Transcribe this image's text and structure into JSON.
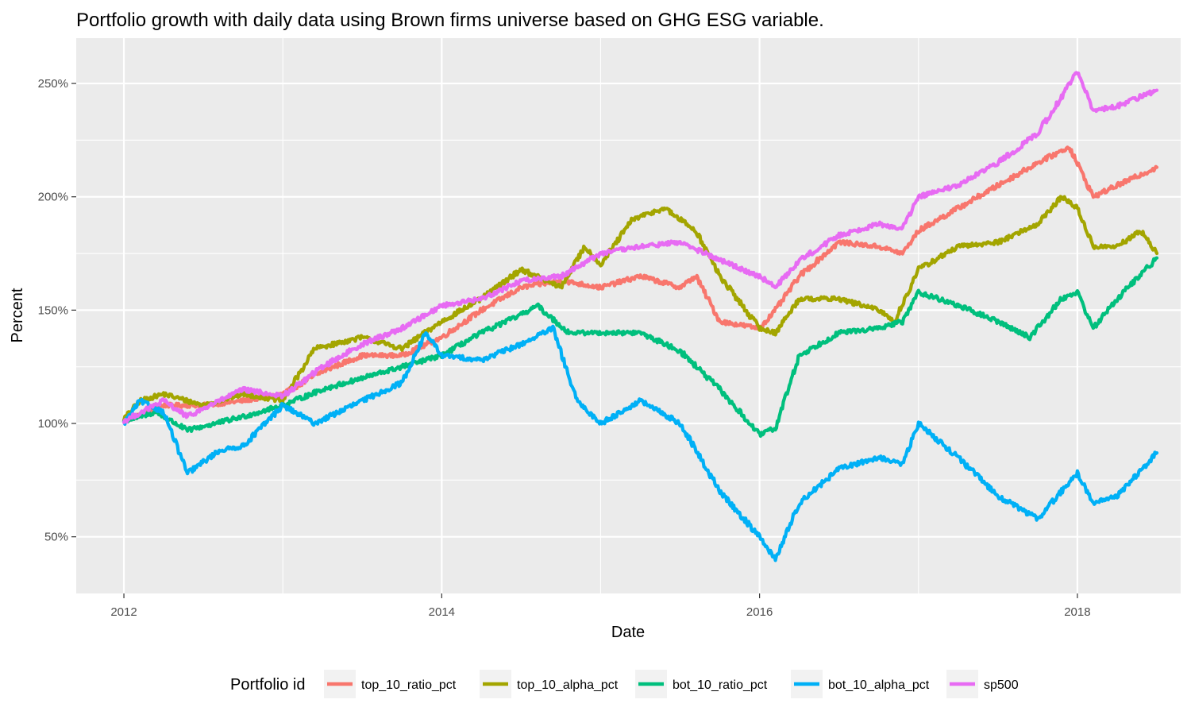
{
  "chart_data": {
    "type": "line",
    "title": "Portfolio growth with daily data using Brown firms universe based on GHG ESG variable.",
    "xlabel": "Date",
    "ylabel": "Percent",
    "x_ticks": [
      "2012",
      "2014",
      "2016",
      "2018"
    ],
    "y_ticks": [
      "50%",
      "100%",
      "150%",
      "200%",
      "250%"
    ],
    "xlim": [
      2011.7,
      2018.65
    ],
    "ylim": [
      25,
      270
    ],
    "grid": true,
    "legend": {
      "title": "Portfolio id",
      "position": "bottom"
    },
    "series": [
      {
        "name": "top_10_ratio_pct",
        "color": "#F8766D",
        "x": [
          2012.0,
          2012.25,
          2012.5,
          2012.75,
          2013.0,
          2013.25,
          2013.5,
          2013.75,
          2014.0,
          2014.25,
          2014.5,
          2014.75,
          2015.0,
          2015.25,
          2015.5,
          2015.6,
          2015.75,
          2016.0,
          2016.1,
          2016.25,
          2016.5,
          2016.75,
          2016.9,
          2017.0,
          2017.25,
          2017.5,
          2017.75,
          2017.95,
          2018.1,
          2018.25,
          2018.5
        ],
        "y": [
          101,
          108,
          108,
          110,
          113,
          123,
          130,
          130,
          138,
          150,
          160,
          163,
          160,
          165,
          160,
          165,
          145,
          142,
          150,
          165,
          180,
          178,
          175,
          185,
          195,
          205,
          215,
          222,
          200,
          205,
          213
        ]
      },
      {
        "name": "top_10_alpha_pct",
        "color": "#A3A500",
        "x": [
          2012.0,
          2012.1,
          2012.25,
          2012.5,
          2012.75,
          2013.0,
          2013.2,
          2013.5,
          2013.75,
          2014.0,
          2014.25,
          2014.5,
          2014.75,
          2014.9,
          2015.0,
          2015.2,
          2015.4,
          2015.6,
          2015.75,
          2016.0,
          2016.1,
          2016.25,
          2016.5,
          2016.75,
          2016.85,
          2017.0,
          2017.25,
          2017.5,
          2017.75,
          2017.9,
          2018.0,
          2018.1,
          2018.25,
          2018.4,
          2018.5
        ],
        "y": [
          102,
          110,
          113,
          108,
          113,
          110,
          133,
          138,
          133,
          145,
          155,
          168,
          160,
          178,
          170,
          190,
          195,
          185,
          165,
          142,
          140,
          155,
          155,
          150,
          145,
          168,
          178,
          180,
          188,
          200,
          195,
          178,
          178,
          185,
          175
        ]
      },
      {
        "name": "bot_10_ratio_pct",
        "color": "#00BF7D",
        "x": [
          2012.0,
          2012.2,
          2012.4,
          2012.75,
          2013.0,
          2013.25,
          2013.5,
          2013.75,
          2014.0,
          2014.25,
          2014.5,
          2014.6,
          2014.8,
          2015.0,
          2015.25,
          2015.5,
          2015.75,
          2016.0,
          2016.1,
          2016.25,
          2016.5,
          2016.75,
          2016.9,
          2017.0,
          2017.25,
          2017.5,
          2017.7,
          2017.9,
          2018.0,
          2018.1,
          2018.25,
          2018.5
        ],
        "y": [
          101,
          105,
          97,
          103,
          108,
          115,
          120,
          125,
          130,
          140,
          148,
          152,
          140,
          140,
          140,
          132,
          115,
          95,
          98,
          130,
          140,
          142,
          145,
          158,
          152,
          145,
          138,
          155,
          158,
          142,
          155,
          173
        ]
      },
      {
        "name": "bot_10_alpha_pct",
        "color": "#00B0F6",
        "x": [
          2012.0,
          2012.1,
          2012.25,
          2012.4,
          2012.6,
          2012.75,
          2013.0,
          2013.2,
          2013.5,
          2013.75,
          2013.9,
          2014.0,
          2014.25,
          2014.5,
          2014.7,
          2014.85,
          2015.0,
          2015.25,
          2015.5,
          2015.75,
          2016.0,
          2016.1,
          2016.25,
          2016.5,
          2016.75,
          2016.9,
          2017.0,
          2017.25,
          2017.5,
          2017.75,
          2018.0,
          2018.1,
          2018.25,
          2018.5
        ],
        "y": [
          100,
          110,
          105,
          78,
          88,
          90,
          108,
          100,
          110,
          118,
          140,
          130,
          128,
          135,
          142,
          110,
          100,
          110,
          100,
          70,
          50,
          40,
          65,
          80,
          85,
          82,
          100,
          85,
          68,
          58,
          78,
          65,
          68,
          87
        ]
      },
      {
        "name": "sp500",
        "color": "#E76BF3",
        "x": [
          2012.0,
          2012.25,
          2012.4,
          2012.6,
          2012.75,
          2013.0,
          2013.25,
          2013.5,
          2013.75,
          2014.0,
          2014.25,
          2014.5,
          2014.75,
          2015.0,
          2015.25,
          2015.5,
          2015.75,
          2016.0,
          2016.1,
          2016.25,
          2016.5,
          2016.75,
          2016.9,
          2017.0,
          2017.25,
          2017.5,
          2017.75,
          2018.0,
          2018.1,
          2018.25,
          2018.5
        ],
        "y": [
          101,
          110,
          103,
          110,
          115,
          112,
          125,
          135,
          142,
          152,
          155,
          163,
          165,
          175,
          178,
          180,
          172,
          165,
          160,
          172,
          183,
          188,
          186,
          200,
          205,
          215,
          228,
          255,
          238,
          240,
          247
        ]
      }
    ]
  }
}
